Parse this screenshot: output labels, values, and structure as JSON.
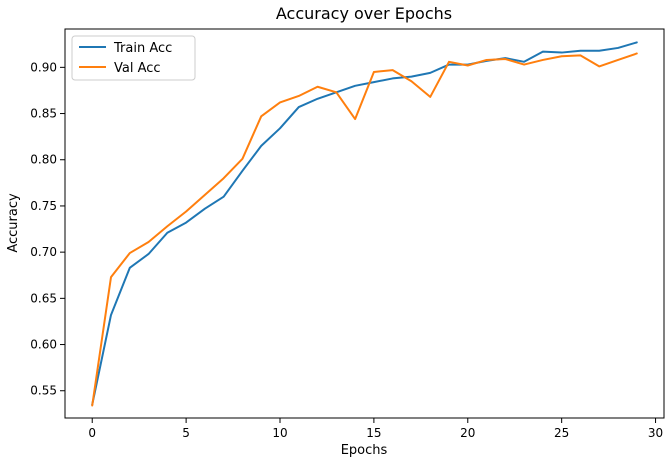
{
  "chart_data": {
    "type": "line",
    "title": "Accuracy over Epochs",
    "xlabel": "Epochs",
    "ylabel": "Accuracy",
    "xlim": [
      -1.45,
      30.45
    ],
    "ylim": [
      0.5205,
      0.9415
    ],
    "xticks": [
      0,
      5,
      10,
      15,
      20,
      25,
      30
    ],
    "yticks": [
      0.55,
      0.6,
      0.65,
      0.7,
      0.75,
      0.8,
      0.85,
      0.9
    ],
    "ytick_labels": [
      "0.55",
      "0.60",
      "0.65",
      "0.70",
      "0.75",
      "0.80",
      "0.85",
      "0.90"
    ],
    "grid": false,
    "legend_position": "top-left",
    "x": [
      0,
      1,
      2,
      3,
      4,
      5,
      6,
      7,
      8,
      9,
      10,
      11,
      12,
      13,
      14,
      15,
      16,
      17,
      18,
      19,
      20,
      21,
      22,
      23,
      24,
      25,
      26,
      27,
      28,
      29
    ],
    "series": [
      {
        "name": "Train Acc",
        "color": "#1f77b4",
        "values": [
          0.535,
          0.632,
          0.683,
          0.698,
          0.721,
          0.732,
          0.747,
          0.76,
          0.788,
          0.815,
          0.834,
          0.857,
          0.866,
          0.873,
          0.88,
          0.884,
          0.888,
          0.89,
          0.894,
          0.903,
          0.903,
          0.907,
          0.91,
          0.906,
          0.917,
          0.916,
          0.918,
          0.918,
          0.921,
          0.927
        ]
      },
      {
        "name": "Val Acc",
        "color": "#ff7f0e",
        "values": [
          0.534,
          0.673,
          0.699,
          0.711,
          0.728,
          0.744,
          0.762,
          0.78,
          0.801,
          0.847,
          0.862,
          0.869,
          0.879,
          0.873,
          0.844,
          0.895,
          0.897,
          0.885,
          0.868,
          0.906,
          0.902,
          0.908,
          0.909,
          0.903,
          0.908,
          0.912,
          0.913,
          0.901,
          0.908,
          0.915
        ]
      }
    ]
  }
}
